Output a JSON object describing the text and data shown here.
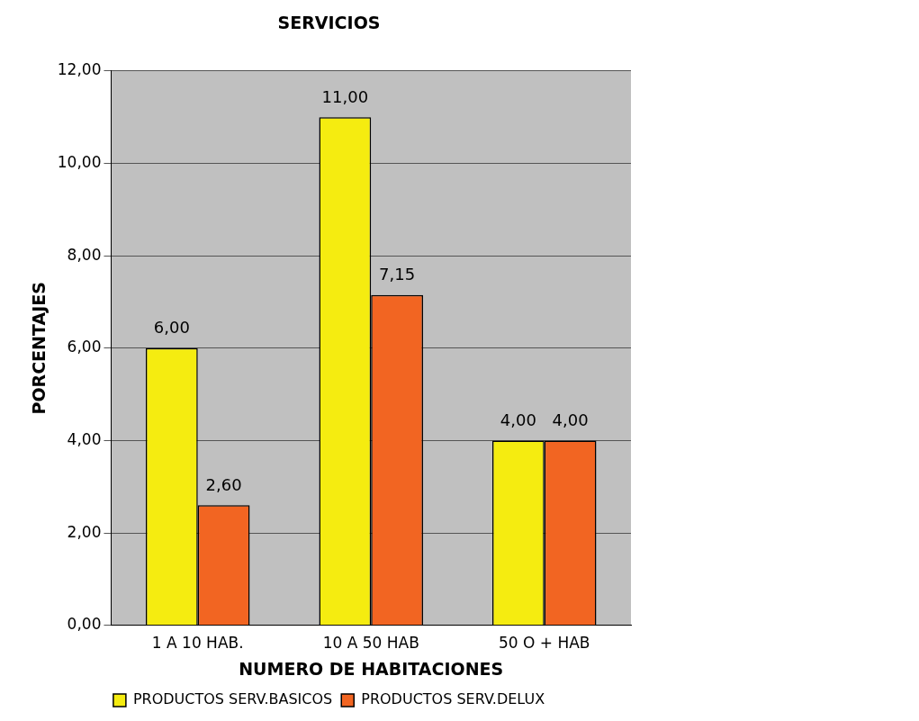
{
  "chart_data": {
    "type": "bar",
    "title": "SERVICIOS",
    "xlabel": "NUMERO DE HABITACIONES",
    "ylabel": "PORCENTAJES",
    "categories": [
      "1 A 10 HAB.",
      "10 A 50 HAB",
      "50 O + HAB"
    ],
    "series": [
      {
        "name": "PRODUCTOS SERV.BASICOS",
        "color": "#f5ec10",
        "values": [
          6,
          11,
          4
        ],
        "value_labels": [
          "6,00",
          "11,00",
          "4,00"
        ]
      },
      {
        "name": "PRODUCTOS SERV.DELUX",
        "color": "#f26522",
        "values": [
          2.6,
          7.15,
          4
        ],
        "value_labels": [
          "2,60",
          "7,15",
          "4,00"
        ]
      }
    ],
    "ylim": [
      0,
      12
    ],
    "yticks": [
      {
        "value": 0,
        "label": "0,00"
      },
      {
        "value": 2,
        "label": "2,00"
      },
      {
        "value": 4,
        "label": "4,00"
      },
      {
        "value": 6,
        "label": "6,00"
      },
      {
        "value": 8,
        "label": "8,00"
      },
      {
        "value": 10,
        "label": "10,00"
      },
      {
        "value": 12,
        "label": "12,00"
      }
    ],
    "grid": "y",
    "legend": "bottom"
  }
}
